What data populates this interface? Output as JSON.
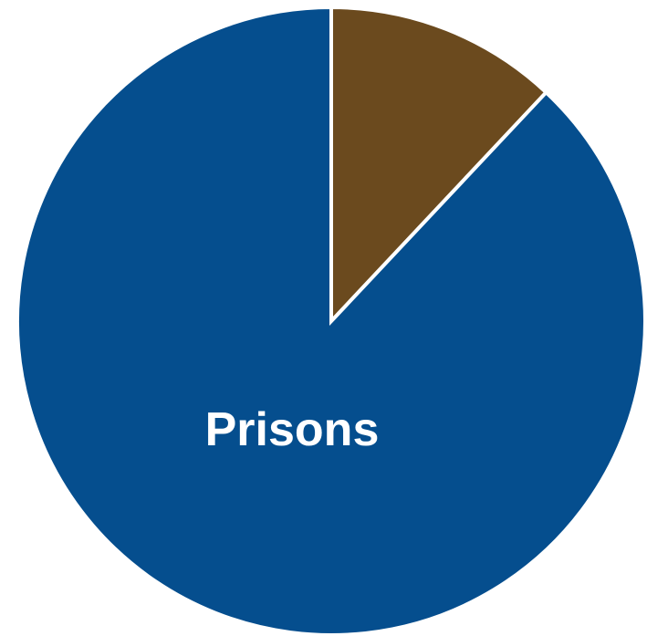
{
  "chart_data": {
    "type": "pie",
    "categories": [
      null,
      "Prisons"
    ],
    "values": [
      12,
      88
    ],
    "colors": [
      "#6b4a1e",
      "#054e8e"
    ]
  }
}
